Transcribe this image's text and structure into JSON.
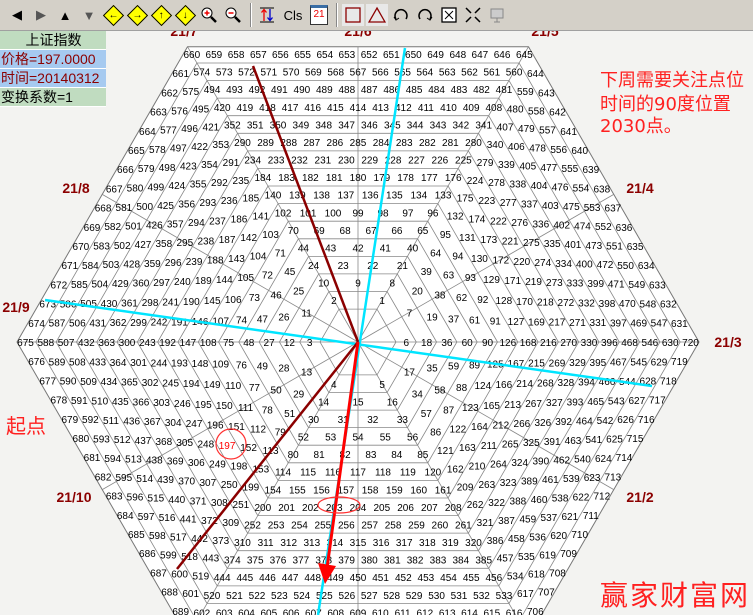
{
  "toolbar": {
    "items": [
      {
        "name": "back-icon",
        "glyph": "◀"
      },
      {
        "name": "forward-icon",
        "glyph": "▶"
      },
      {
        "name": "up-arrow-icon",
        "glyph": "▲"
      },
      {
        "name": "down-arrow-icon",
        "glyph": "▼"
      }
    ],
    "diamonds": [
      {
        "name": "move-left-icon",
        "glyph": "←"
      },
      {
        "name": "move-right-icon",
        "glyph": "→"
      },
      {
        "name": "move-up-icon",
        "glyph": "↑"
      },
      {
        "name": "move-down-icon",
        "glyph": "↓"
      }
    ],
    "cls_label": "Cls",
    "calendar_label": "21"
  },
  "panel": {
    "title": "上证指数",
    "price": "价格=197.0000",
    "time": "时间=20140312",
    "factor": "变换系数=1"
  },
  "spiral": {
    "first": 1,
    "rings": 15,
    "highlight": 197
  },
  "sector_labels": [
    "21/7",
    "21/6",
    "21/5",
    "21/8",
    "21/4",
    "21/9",
    "21/3",
    "21/10",
    "21/2"
  ],
  "annotations": {
    "start": "起点",
    "line1": "下周需要关注点位",
    "line2": "时间的90度位置2030点。",
    "watermark": "赢家财富网"
  },
  "colors": {
    "number": "#000000",
    "highlight": "#ff0000",
    "label": "#8b0000",
    "cyan": "#00e5ff",
    "darkred": "#8b0000",
    "arrow": "#ff0000",
    "grid": "#888888"
  }
}
